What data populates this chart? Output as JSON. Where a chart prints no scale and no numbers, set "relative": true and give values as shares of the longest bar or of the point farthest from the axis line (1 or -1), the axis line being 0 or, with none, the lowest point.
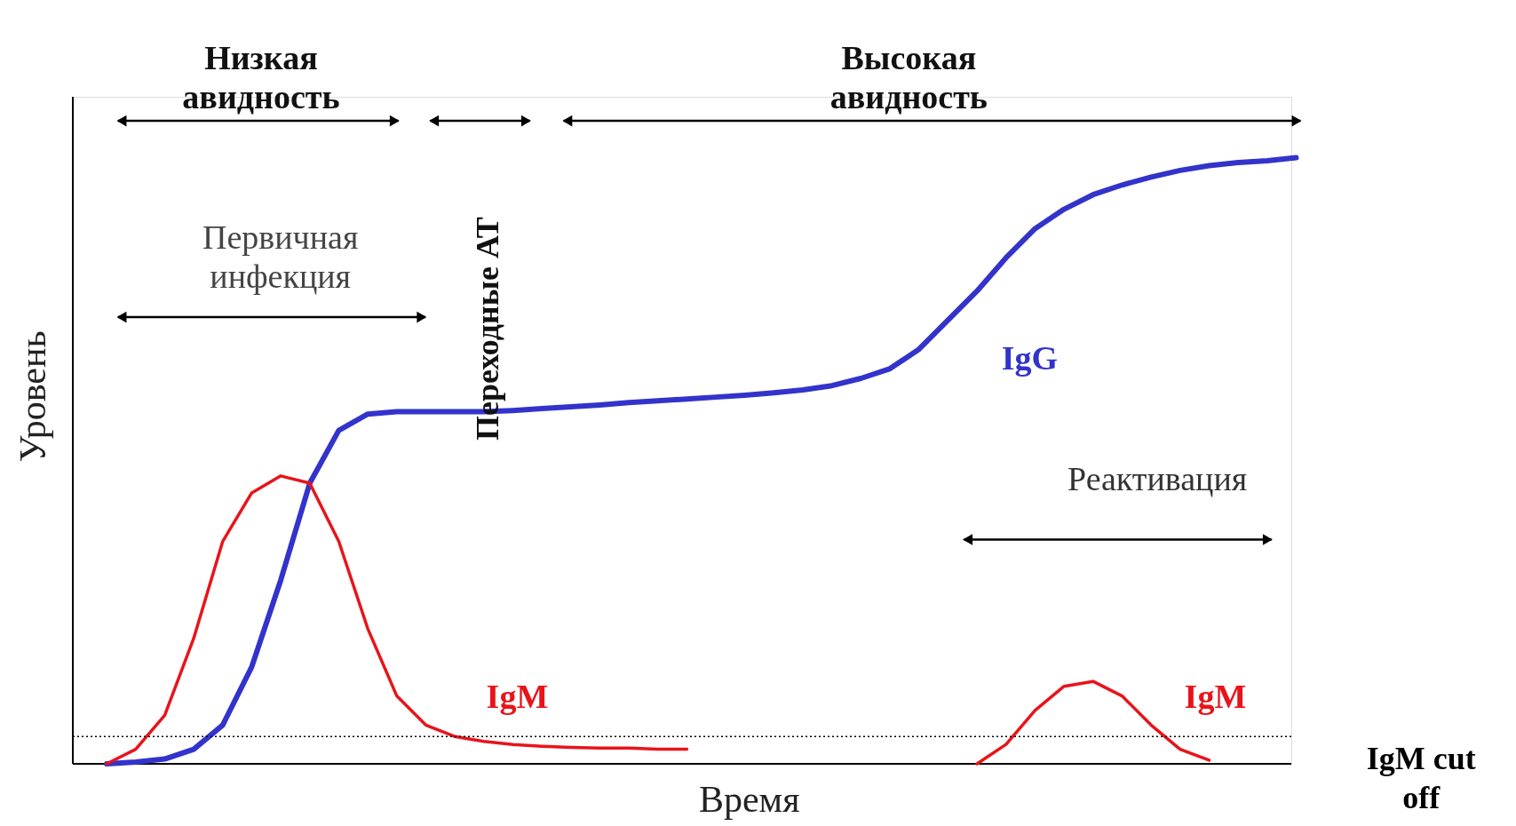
{
  "chart_data": {
    "type": "line",
    "relative": true,
    "xlabel": "Время",
    "ylabel": "Уровень",
    "marker": "none",
    "line_style": "solid",
    "categories": [
      null,
      null,
      null,
      null,
      null,
      null,
      null,
      null,
      null,
      null,
      null,
      null,
      null,
      null,
      null,
      null,
      null,
      null,
      null,
      null,
      null,
      null,
      null,
      null,
      null,
      null,
      null,
      null,
      null,
      null,
      null,
      null,
      null,
      null,
      null,
      null,
      null,
      null,
      null,
      null,
      null,
      null
    ],
    "series": [
      {
        "name": "IgG",
        "color": "#3333cc",
        "values": [
          0,
          0.003,
          0.008,
          0.024,
          0.064,
          0.16,
          0.303,
          0.463,
          0.55,
          0.577,
          0.581,
          0.581,
          0.581,
          0.581,
          0.583,
          0.586,
          0.589,
          0.592,
          0.596,
          0.599,
          0.602,
          0.605,
          0.608,
          0.612,
          0.617,
          0.624,
          0.636,
          0.652,
          0.684,
          0.732,
          0.78,
          0.835,
          0.883,
          0.915,
          0.939,
          0.955,
          0.968,
          0.979,
          0.987,
          0.992,
          0.995,
          1
        ]
      },
      {
        "name": "IgM",
        "color": "#e8141b",
        "values": [
          0,
          0.024,
          0.08,
          0.207,
          0.367,
          0.447,
          0.475,
          0.463,
          0.367,
          0.223,
          0.112,
          0.064,
          0.045,
          0.037,
          0.032,
          0.029,
          0.027,
          0.026,
          0.026,
          0.024,
          0.024,
          null,
          null,
          null,
          null,
          null,
          null,
          null,
          null,
          null,
          0,
          0.032,
          0.088,
          0.128,
          0.136,
          0.112,
          0.064,
          0.024,
          0.006,
          null,
          null,
          null
        ]
      }
    ],
    "ref_lines": [
      {
        "axis": "y",
        "value": 0.045,
        "label": "IgM cut off",
        "color": "#000000",
        "line_style": "dotted"
      }
    ],
    "annotations": [
      "Низкая\nавидность",
      "Высокая\nавидность",
      "Первичная\nинфекция",
      "Переходные АТ",
      "Реактивация",
      "IgM"
    ]
  }
}
